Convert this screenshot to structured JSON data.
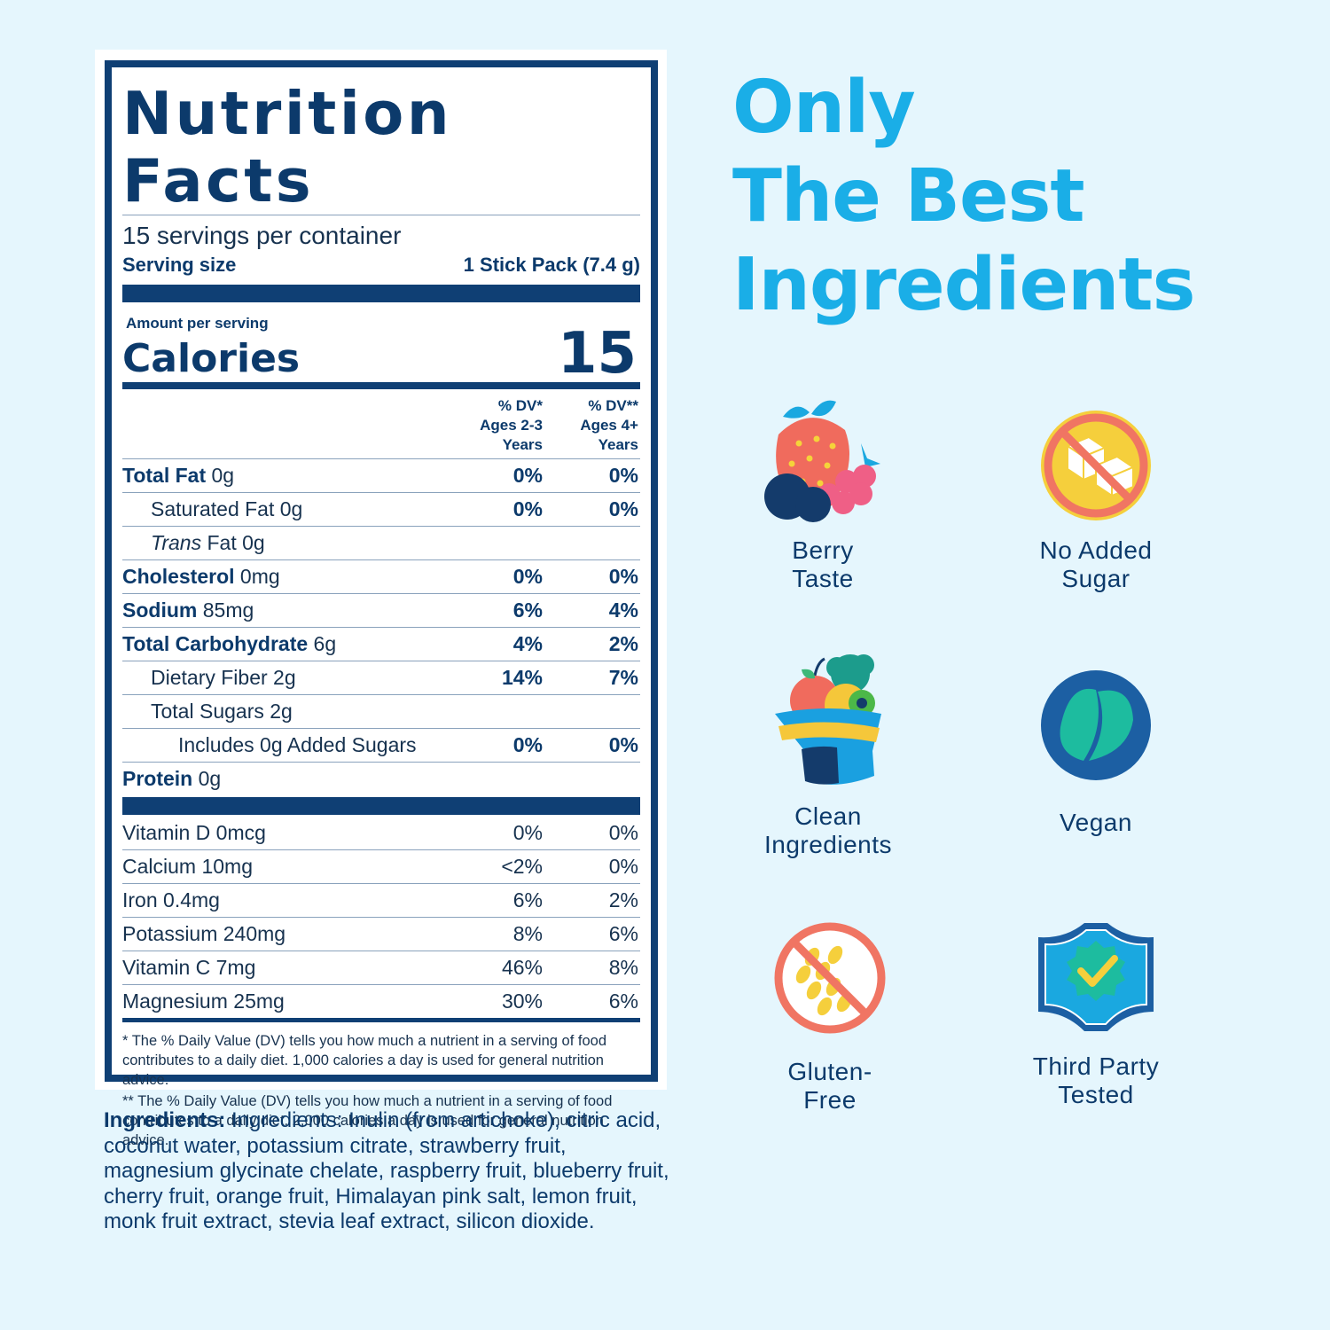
{
  "nutrition": {
    "title": "Nutrition Facts",
    "servings": "15 servings per container",
    "serving_size_label": "Serving size",
    "serving_size_value": "1 Stick Pack (7.4 g)",
    "amount_label": "Amount per serving",
    "calories_label": "Calories",
    "calories_value": "15",
    "dv_col1": "% DV*\nAges 2-3\nYears",
    "dv_col2": "% DV**\nAges 4+\nYears",
    "rows": [
      {
        "bold": "Total Fat",
        "rest": " 0g",
        "dv1": "0%",
        "dv2": "0%"
      },
      {
        "bold": "",
        "rest": "Saturated Fat 0g",
        "dv1": "0%",
        "dv2": "0%"
      },
      {
        "italic": "Trans",
        "rest": " Fat 0g",
        "dv1": "",
        "dv2": ""
      },
      {
        "bold": "Cholesterol",
        "rest": " 0mg",
        "dv1": "0%",
        "dv2": "0%"
      },
      {
        "bold": "Sodium",
        "rest": " 85mg",
        "dv1": "6%",
        "dv2": "4%"
      },
      {
        "bold": "Total Carbohydrate",
        "rest": " 6g",
        "dv1": "4%",
        "dv2": "2%"
      },
      {
        "bold": "",
        "rest": "Dietary Fiber 2g",
        "dv1": "14%",
        "dv2": "7%"
      },
      {
        "bold": "",
        "rest": "Total Sugars 2g",
        "dv1": "",
        "dv2": ""
      },
      {
        "bold": "",
        "rest": "Includes 0g Added Sugars",
        "dv1": "0%",
        "dv2": "0%"
      },
      {
        "bold": "Protein",
        "rest": " 0g",
        "dv1": "",
        "dv2": ""
      }
    ],
    "vitamins": [
      {
        "name": "Vitamin D 0mcg",
        "dv1": "0%",
        "dv2": "0%"
      },
      {
        "name": "Calcium 10mg",
        "dv1": "<2%",
        "dv2": "0%"
      },
      {
        "name": "Iron 0.4mg",
        "dv1": "6%",
        "dv2": "2%"
      },
      {
        "name": "Potassium 240mg",
        "dv1": "8%",
        "dv2": "6%"
      },
      {
        "name": "Vitamin C 7mg",
        "dv1": "46%",
        "dv2": "8%"
      },
      {
        "name": "Magnesium 25mg",
        "dv1": "30%",
        "dv2": "6%"
      }
    ],
    "footnote1": "* The % Daily Value (DV) tells you how much a nutrient in a serving of food contributes to a daily diet. 1,000 calories a day is used for general nutrition advice.",
    "footnote2": "** The % Daily Value (DV) tells you how much a nutrient in a serving of food contributes to a daily diet. 2,000 calories a day is used for general nutrition advice."
  },
  "ingredients": {
    "label": "Ingredients:",
    "text": " Ingredients: Inulin (from artichoke), citric acid, coconut water, potassium citrate, strawberry fruit, magnesium glycinate chelate, raspberry fruit, blueberry fruit, cherry fruit, orange fruit, Himalayan pink salt, lemon fruit, monk fruit extract, stevia leaf extract, silicon dioxide."
  },
  "headline": {
    "line1": "Only",
    "line2": "The Best",
    "line3": "Ingredients"
  },
  "features": [
    {
      "label": "Berry\nTaste",
      "icon": "berry-icon"
    },
    {
      "label": "No Added\nSugar",
      "icon": "no-sugar-icon"
    },
    {
      "label": "Clean\nIngredients",
      "icon": "clean-ingredients-icon"
    },
    {
      "label": "Vegan",
      "icon": "vegan-leaf-icon"
    },
    {
      "label": "Gluten-\nFree",
      "icon": "gluten-free-icon"
    },
    {
      "label": "Third Party\nTested",
      "icon": "third-party-tested-icon"
    }
  ],
  "colors": {
    "background": "#e5f6fd",
    "navy": "#0f3f74",
    "headline": "#1aaee7"
  }
}
